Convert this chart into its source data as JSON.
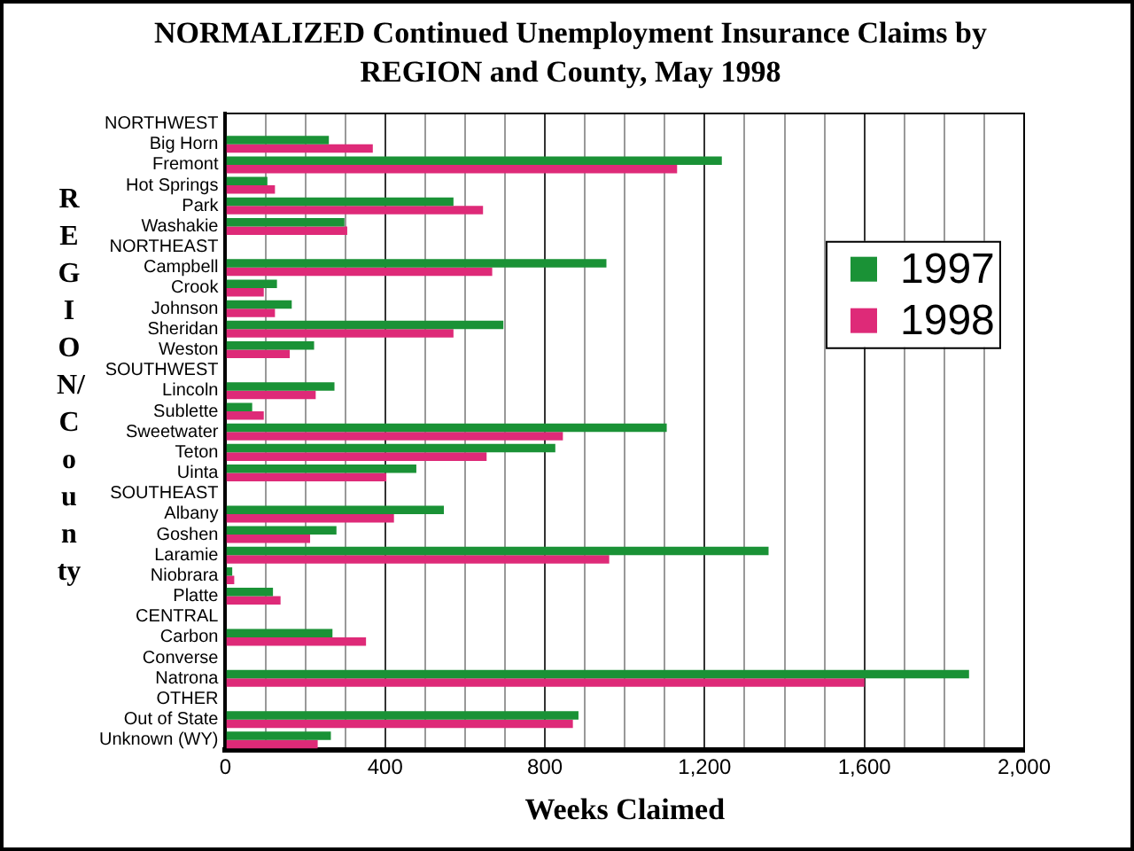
{
  "chart_data": {
    "type": "bar",
    "orientation": "horizontal",
    "title": "NORMALIZED Continued Unemployment Insurance Claims by REGION and County, May 1998",
    "xlabel": "Weeks Claimed",
    "ylabel": "REGION/County",
    "categories": [
      "NORTHWEST",
      "Big Horn",
      "Fremont",
      "Hot Springs",
      "Park",
      "Washakie",
      "NORTHEAST",
      "Campbell",
      "Crook",
      "Johnson",
      "Sheridan",
      "Weston",
      "SOUTHWEST",
      "Lincoln",
      "Sublette",
      "Sweetwater",
      "Teton",
      "Uinta",
      "SOUTHEAST",
      "Albany",
      "Goshen",
      "Laramie",
      "Niobrara",
      "Platte",
      "CENTRAL",
      "Carbon",
      "Converse",
      "Natrona",
      "OTHER",
      "Out of State",
      "Unknown (WY)"
    ],
    "series": [
      {
        "name": "1997",
        "color": "#1a9236",
        "values": [
          null,
          259,
          1243,
          105,
          571,
          298,
          null,
          954,
          129,
          166,
          696,
          222,
          null,
          273,
          67,
          1105,
          826,
          478,
          null,
          547,
          278,
          1360,
          17,
          119,
          null,
          268,
          null,
          1862,
          null,
          884,
          264
        ]
      },
      {
        "name": "1998",
        "color": "#de2a78",
        "values": [
          null,
          369,
          1131,
          124,
          645,
          305,
          null,
          668,
          96,
          124,
          571,
          161,
          null,
          226,
          96,
          845,
          654,
          403,
          null,
          422,
          212,
          961,
          22,
          138,
          null,
          352,
          null,
          1600,
          null,
          870,
          231
        ]
      }
    ],
    "xlim": [
      0,
      2000
    ],
    "xticks": [
      0,
      {
        "value": 100,
        "label": null
      },
      {
        "value": 200,
        "label": null
      },
      {
        "value": 300,
        "label": null
      },
      400,
      {
        "value": 500,
        "label": null
      },
      {
        "value": 600,
        "label": null
      },
      {
        "value": 700,
        "label": null
      },
      800,
      {
        "value": 900,
        "label": null
      },
      {
        "value": 1000,
        "label": null
      },
      {
        "value": 1100,
        "label": null
      },
      {
        "value": 1200,
        "label": "1,200"
      },
      {
        "value": 1300,
        "label": null
      },
      {
        "value": 1400,
        "label": null
      },
      {
        "value": 1500,
        "label": null
      },
      {
        "value": 1600,
        "label": "1,600"
      },
      {
        "value": 1700,
        "label": null
      },
      {
        "value": 1800,
        "label": null
      },
      {
        "value": 1900,
        "label": null
      },
      {
        "value": 2000,
        "label": "2,000"
      }
    ],
    "grid": "x",
    "legend": "right"
  }
}
